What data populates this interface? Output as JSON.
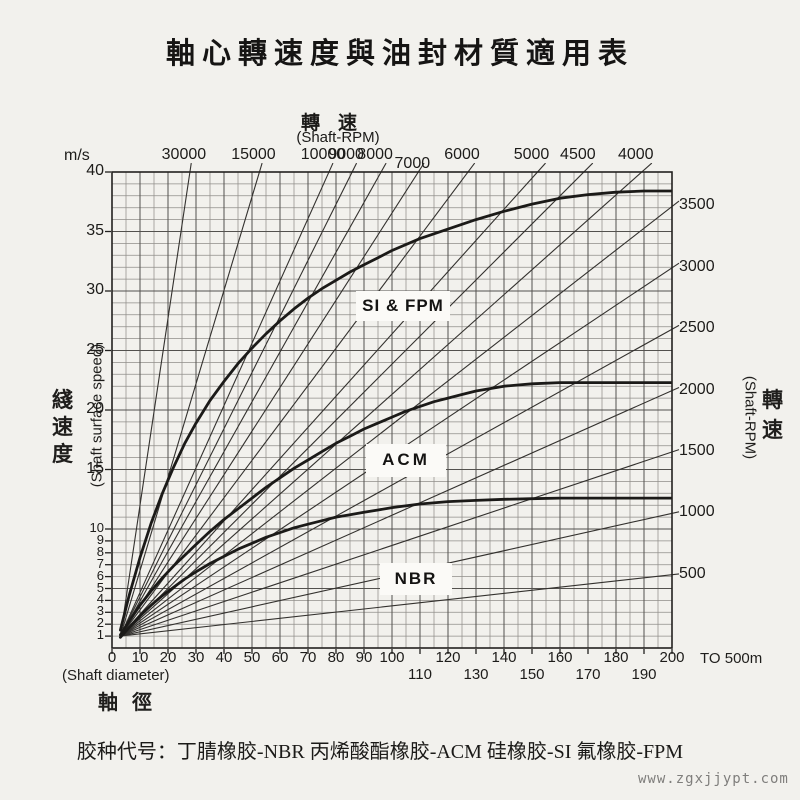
{
  "page": {
    "title": "軸心轉速度與油封材質適用表",
    "caption": "胶种代号：丁腈橡胶-NBR 丙烯酸酯橡胶-ACM 硅橡胶-SI 氟橡胶-FPM",
    "watermark": "www.zgxjjypt.com"
  },
  "axes": {
    "top": {
      "title_cjk": "轉速",
      "title_en": "(Shaft-RPM)",
      "unit": "m/s",
      "rpm_labels": [
        30000,
        15000,
        10000,
        9000,
        8000,
        7000,
        6000,
        5000,
        4500,
        4000
      ]
    },
    "right": {
      "title_cjk": "轉速",
      "title_en": "(Shaft-RPM)",
      "rpm_labels": [
        3500,
        3000,
        2500,
        2000,
        1500,
        1000,
        500
      ]
    },
    "left": {
      "title_cjk": "綫速度",
      "title_en": "(Shaft surface speed)",
      "ticks": [
        40,
        35,
        30,
        25,
        20,
        15,
        10,
        9,
        8,
        7,
        6,
        5,
        4,
        3,
        2,
        1
      ]
    },
    "bottom": {
      "title_cjk": "軸徑",
      "title_en": "(Shaft diameter)",
      "ticks_row1": [
        0,
        10,
        20,
        30,
        40,
        50,
        60,
        70,
        80,
        90,
        100,
        120,
        140,
        160,
        180,
        200
      ],
      "ticks_row2": [
        110,
        130,
        150,
        170,
        190
      ],
      "extension_note": "TO 500m"
    }
  },
  "chart_data": {
    "type": "line",
    "title": "軸心轉速度與油封材質適用表",
    "xlabel": "Shaft diameter (mm)",
    "ylabel": "Shaft surface speed (m/s)",
    "xlim": [
      0,
      200
    ],
    "ylim": [
      0,
      40
    ],
    "grid": {
      "x_minor_step": 5,
      "x_major_step": 10,
      "y_minor_step": 1,
      "y_major_step": 5,
      "grid_on": true
    },
    "rpm_lines": [
      30000,
      15000,
      10000,
      9000,
      8000,
      7000,
      6000,
      5000,
      4500,
      4000,
      3500,
      3000,
      2500,
      2000,
      1500,
      1000,
      500
    ],
    "series": [
      {
        "name": "SI & FPM",
        "points": [
          [
            3,
            1.5
          ],
          [
            6,
            4.3
          ],
          [
            10,
            7.6
          ],
          [
            14,
            10.5
          ],
          [
            18,
            13
          ],
          [
            22,
            15.2
          ],
          [
            26,
            17.2
          ],
          [
            30,
            18.9
          ],
          [
            35,
            20.8
          ],
          [
            40,
            22.4
          ],
          [
            45,
            23.9
          ],
          [
            50,
            25.2
          ],
          [
            55,
            26.4
          ],
          [
            60,
            27.5
          ],
          [
            65,
            28.5
          ],
          [
            70,
            29.4
          ],
          [
            75,
            30.2
          ],
          [
            80,
            30.9
          ],
          [
            85,
            31.6
          ],
          [
            90,
            32.2
          ],
          [
            95,
            32.8
          ],
          [
            100,
            33.4
          ],
          [
            110,
            34.4
          ],
          [
            120,
            35.2
          ],
          [
            130,
            36.0
          ],
          [
            140,
            36.7
          ],
          [
            150,
            37.3
          ],
          [
            160,
            37.8
          ],
          [
            170,
            38.1
          ],
          [
            180,
            38.3
          ],
          [
            190,
            38.4
          ],
          [
            200,
            38.4
          ]
        ]
      },
      {
        "name": "ACM",
        "points": [
          [
            3,
            1.1
          ],
          [
            6,
            2.2
          ],
          [
            10,
            3.6
          ],
          [
            14,
            4.8
          ],
          [
            18,
            5.9
          ],
          [
            22,
            6.9
          ],
          [
            26,
            7.8
          ],
          [
            30,
            8.7
          ],
          [
            35,
            9.8
          ],
          [
            40,
            10.8
          ],
          [
            45,
            11.7
          ],
          [
            50,
            12.6
          ],
          [
            55,
            13.5
          ],
          [
            60,
            14.3
          ],
          [
            65,
            15.1
          ],
          [
            70,
            15.8
          ],
          [
            75,
            16.5
          ],
          [
            80,
            17.2
          ],
          [
            85,
            17.8
          ],
          [
            90,
            18.4
          ],
          [
            95,
            18.9
          ],
          [
            100,
            19.4
          ],
          [
            105,
            19.9
          ],
          [
            110,
            20.3
          ],
          [
            115,
            20.7
          ],
          [
            120,
            21
          ],
          [
            125,
            21.3
          ],
          [
            130,
            21.6
          ],
          [
            135,
            21.8
          ],
          [
            140,
            22
          ],
          [
            145,
            22.1
          ],
          [
            150,
            22.2
          ],
          [
            160,
            22.3
          ],
          [
            170,
            22.3
          ],
          [
            180,
            22.3
          ],
          [
            190,
            22.3
          ],
          [
            200,
            22.3
          ]
        ]
      },
      {
        "name": "NBR",
        "points": [
          [
            3,
            0.9
          ],
          [
            6,
            1.7
          ],
          [
            10,
            2.7
          ],
          [
            14,
            3.6
          ],
          [
            18,
            4.4
          ],
          [
            22,
            5.1
          ],
          [
            26,
            5.8
          ],
          [
            30,
            6.4
          ],
          [
            35,
            7.1
          ],
          [
            40,
            7.7
          ],
          [
            45,
            8.3
          ],
          [
            50,
            8.8
          ],
          [
            55,
            9.3
          ],
          [
            60,
            9.7
          ],
          [
            65,
            10.1
          ],
          [
            70,
            10.4
          ],
          [
            75,
            10.7
          ],
          [
            80,
            11
          ],
          [
            85,
            11.2
          ],
          [
            90,
            11.4
          ],
          [
            95,
            11.6
          ],
          [
            100,
            11.8
          ],
          [
            110,
            12.1
          ],
          [
            120,
            12.3
          ],
          [
            130,
            12.4
          ],
          [
            140,
            12.5
          ],
          [
            150,
            12.55
          ],
          [
            160,
            12.6
          ],
          [
            170,
            12.6
          ],
          [
            180,
            12.6
          ],
          [
            190,
            12.6
          ],
          [
            200,
            12.6
          ]
        ]
      }
    ]
  },
  "colors": {
    "paper": "#f2f1ed",
    "ink": "#1d1c1a",
    "grid_minor": "#908e8a",
    "grid_major": "#53514e",
    "border": "#22211f",
    "fan_line": "#33312e",
    "curve": "#1b1a18",
    "label_box": "#fbfaf7",
    "watermark": "#7f7e7c"
  }
}
